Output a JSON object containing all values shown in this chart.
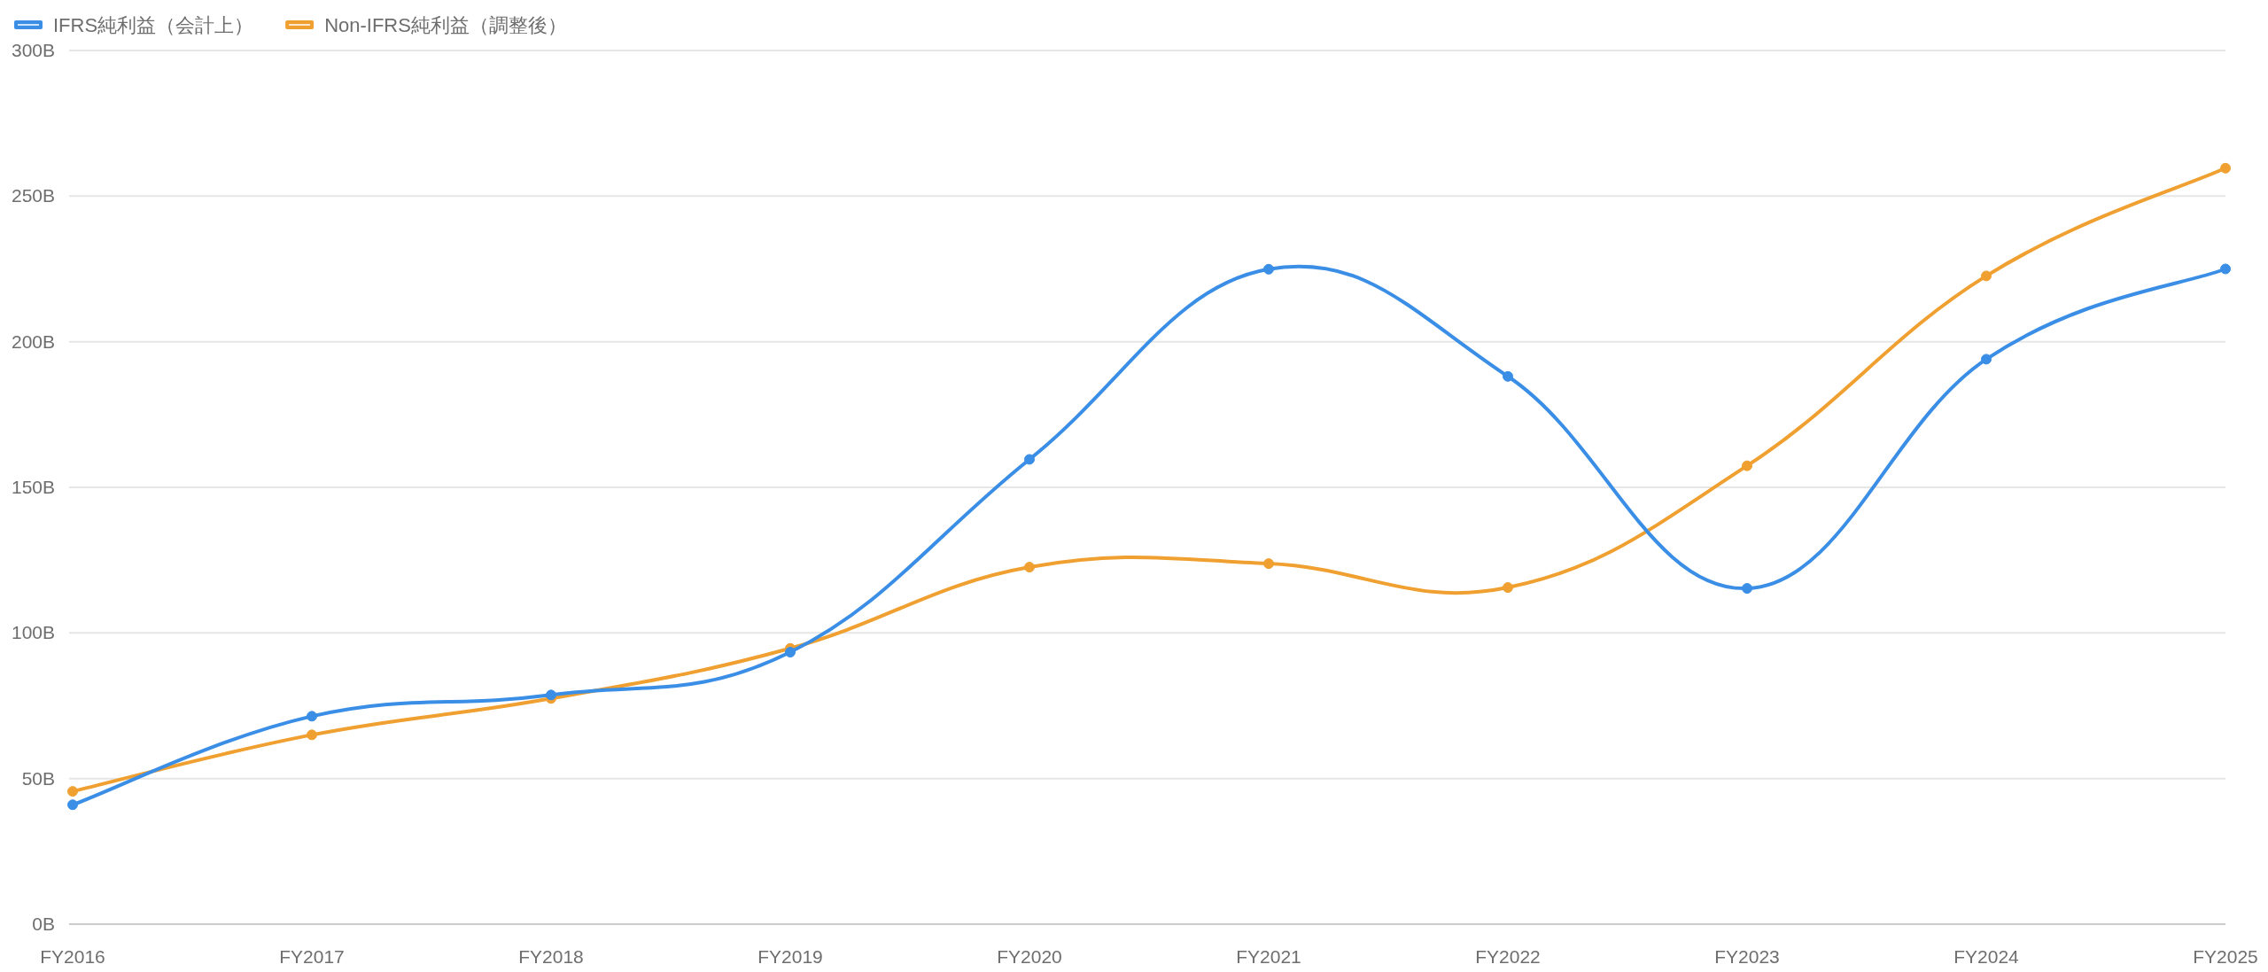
{
  "chart_data": {
    "type": "line",
    "categories": [
      "FY2016",
      "FY2017",
      "FY2018",
      "FY2019",
      "FY2020",
      "FY2021",
      "FY2022",
      "FY2023",
      "FY2024",
      "FY2025"
    ],
    "series": [
      {
        "name": "IFRS純利益（会計上）",
        "color": "#3a8ee6",
        "values": [
          41,
          71.4,
          78.7,
          93.4,
          159.6,
          224.9,
          188.1,
          115.3,
          194,
          225
        ]
      },
      {
        "name": "Non-IFRS純利益（調整後）",
        "color": "#f0a030",
        "values": [
          45.6,
          65,
          77.5,
          94.7,
          122.6,
          123.8,
          115.6,
          157.4,
          222.6,
          259.6
        ]
      }
    ],
    "ylim": [
      0,
      300
    ],
    "yticks": [
      {
        "value": 0,
        "label": "0B"
      },
      {
        "value": 50,
        "label": "50B"
      },
      {
        "value": 100,
        "label": "100B"
      },
      {
        "value": 150,
        "label": "150B"
      },
      {
        "value": 200,
        "label": "200B"
      },
      {
        "value": 250,
        "label": "250B"
      },
      {
        "value": 300,
        "label": "300B"
      }
    ],
    "grid": "y",
    "legend": "top left",
    "marker": "circle"
  }
}
